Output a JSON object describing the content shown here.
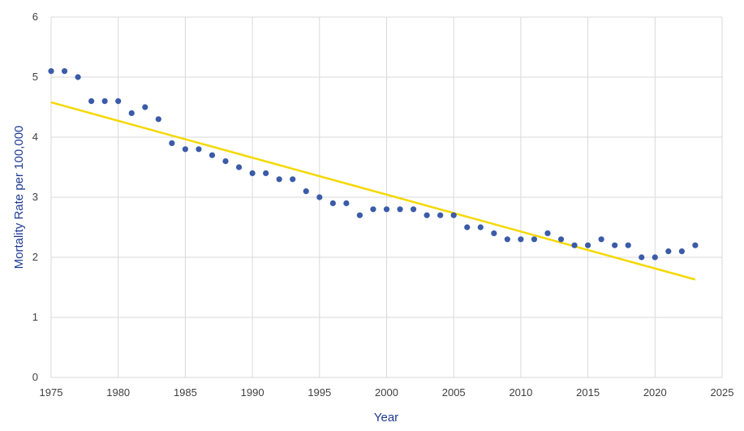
{
  "chart_data": {
    "type": "scatter",
    "title": "",
    "xlabel": "Year",
    "ylabel": "Mortality Rate per 100,000",
    "xlim": [
      1975,
      2025
    ],
    "ylim": [
      0,
      6
    ],
    "x_ticks": [
      "1975",
      "1980",
      "1985",
      "1990",
      "1995",
      "2000",
      "2005",
      "2010",
      "2015",
      "2020",
      "2025"
    ],
    "y_ticks": [
      "0",
      "1",
      "2",
      "3",
      "4",
      "5",
      "6"
    ],
    "grid": true,
    "legend": "none",
    "colors": {
      "points": "#3a5ba8",
      "trendline": "#f5d800",
      "grid": "#d9d9d9",
      "axis_title": "#1f3a93",
      "tick_label": "#404040"
    },
    "series": [
      {
        "type": "scatter",
        "x": [
          1975,
          1976,
          1977,
          1978,
          1979,
          1980,
          1981,
          1982,
          1983,
          1984,
          1985,
          1986,
          1987,
          1988,
          1989,
          1990,
          1991,
          1992,
          1993,
          1994,
          1995,
          1996,
          1997,
          1998,
          1999,
          2000,
          2001,
          2002,
          2003,
          2004,
          2005,
          2006,
          2007,
          2008,
          2009,
          2010,
          2011,
          2012,
          2013,
          2014,
          2015,
          2016,
          2017,
          2018,
          2019,
          2020,
          2021,
          2022,
          2023
        ],
        "y": [
          5.1,
          5.1,
          5.0,
          4.6,
          4.6,
          4.6,
          4.4,
          4.5,
          4.3,
          3.9,
          3.8,
          3.8,
          3.7,
          3.6,
          3.5,
          3.4,
          3.4,
          3.3,
          3.3,
          3.1,
          3.0,
          2.9,
          2.9,
          2.7,
          2.8,
          2.8,
          2.8,
          2.8,
          2.7,
          2.7,
          2.7,
          2.5,
          2.5,
          2.4,
          2.3,
          2.3,
          2.3,
          2.4,
          2.3,
          2.2,
          2.2,
          2.3,
          2.2,
          2.2,
          2.0,
          2.0,
          2.1,
          2.1,
          2.2
        ]
      },
      {
        "type": "trendline",
        "x": [
          1975,
          2023
        ],
        "y": [
          4.58,
          1.63
        ]
      }
    ]
  }
}
